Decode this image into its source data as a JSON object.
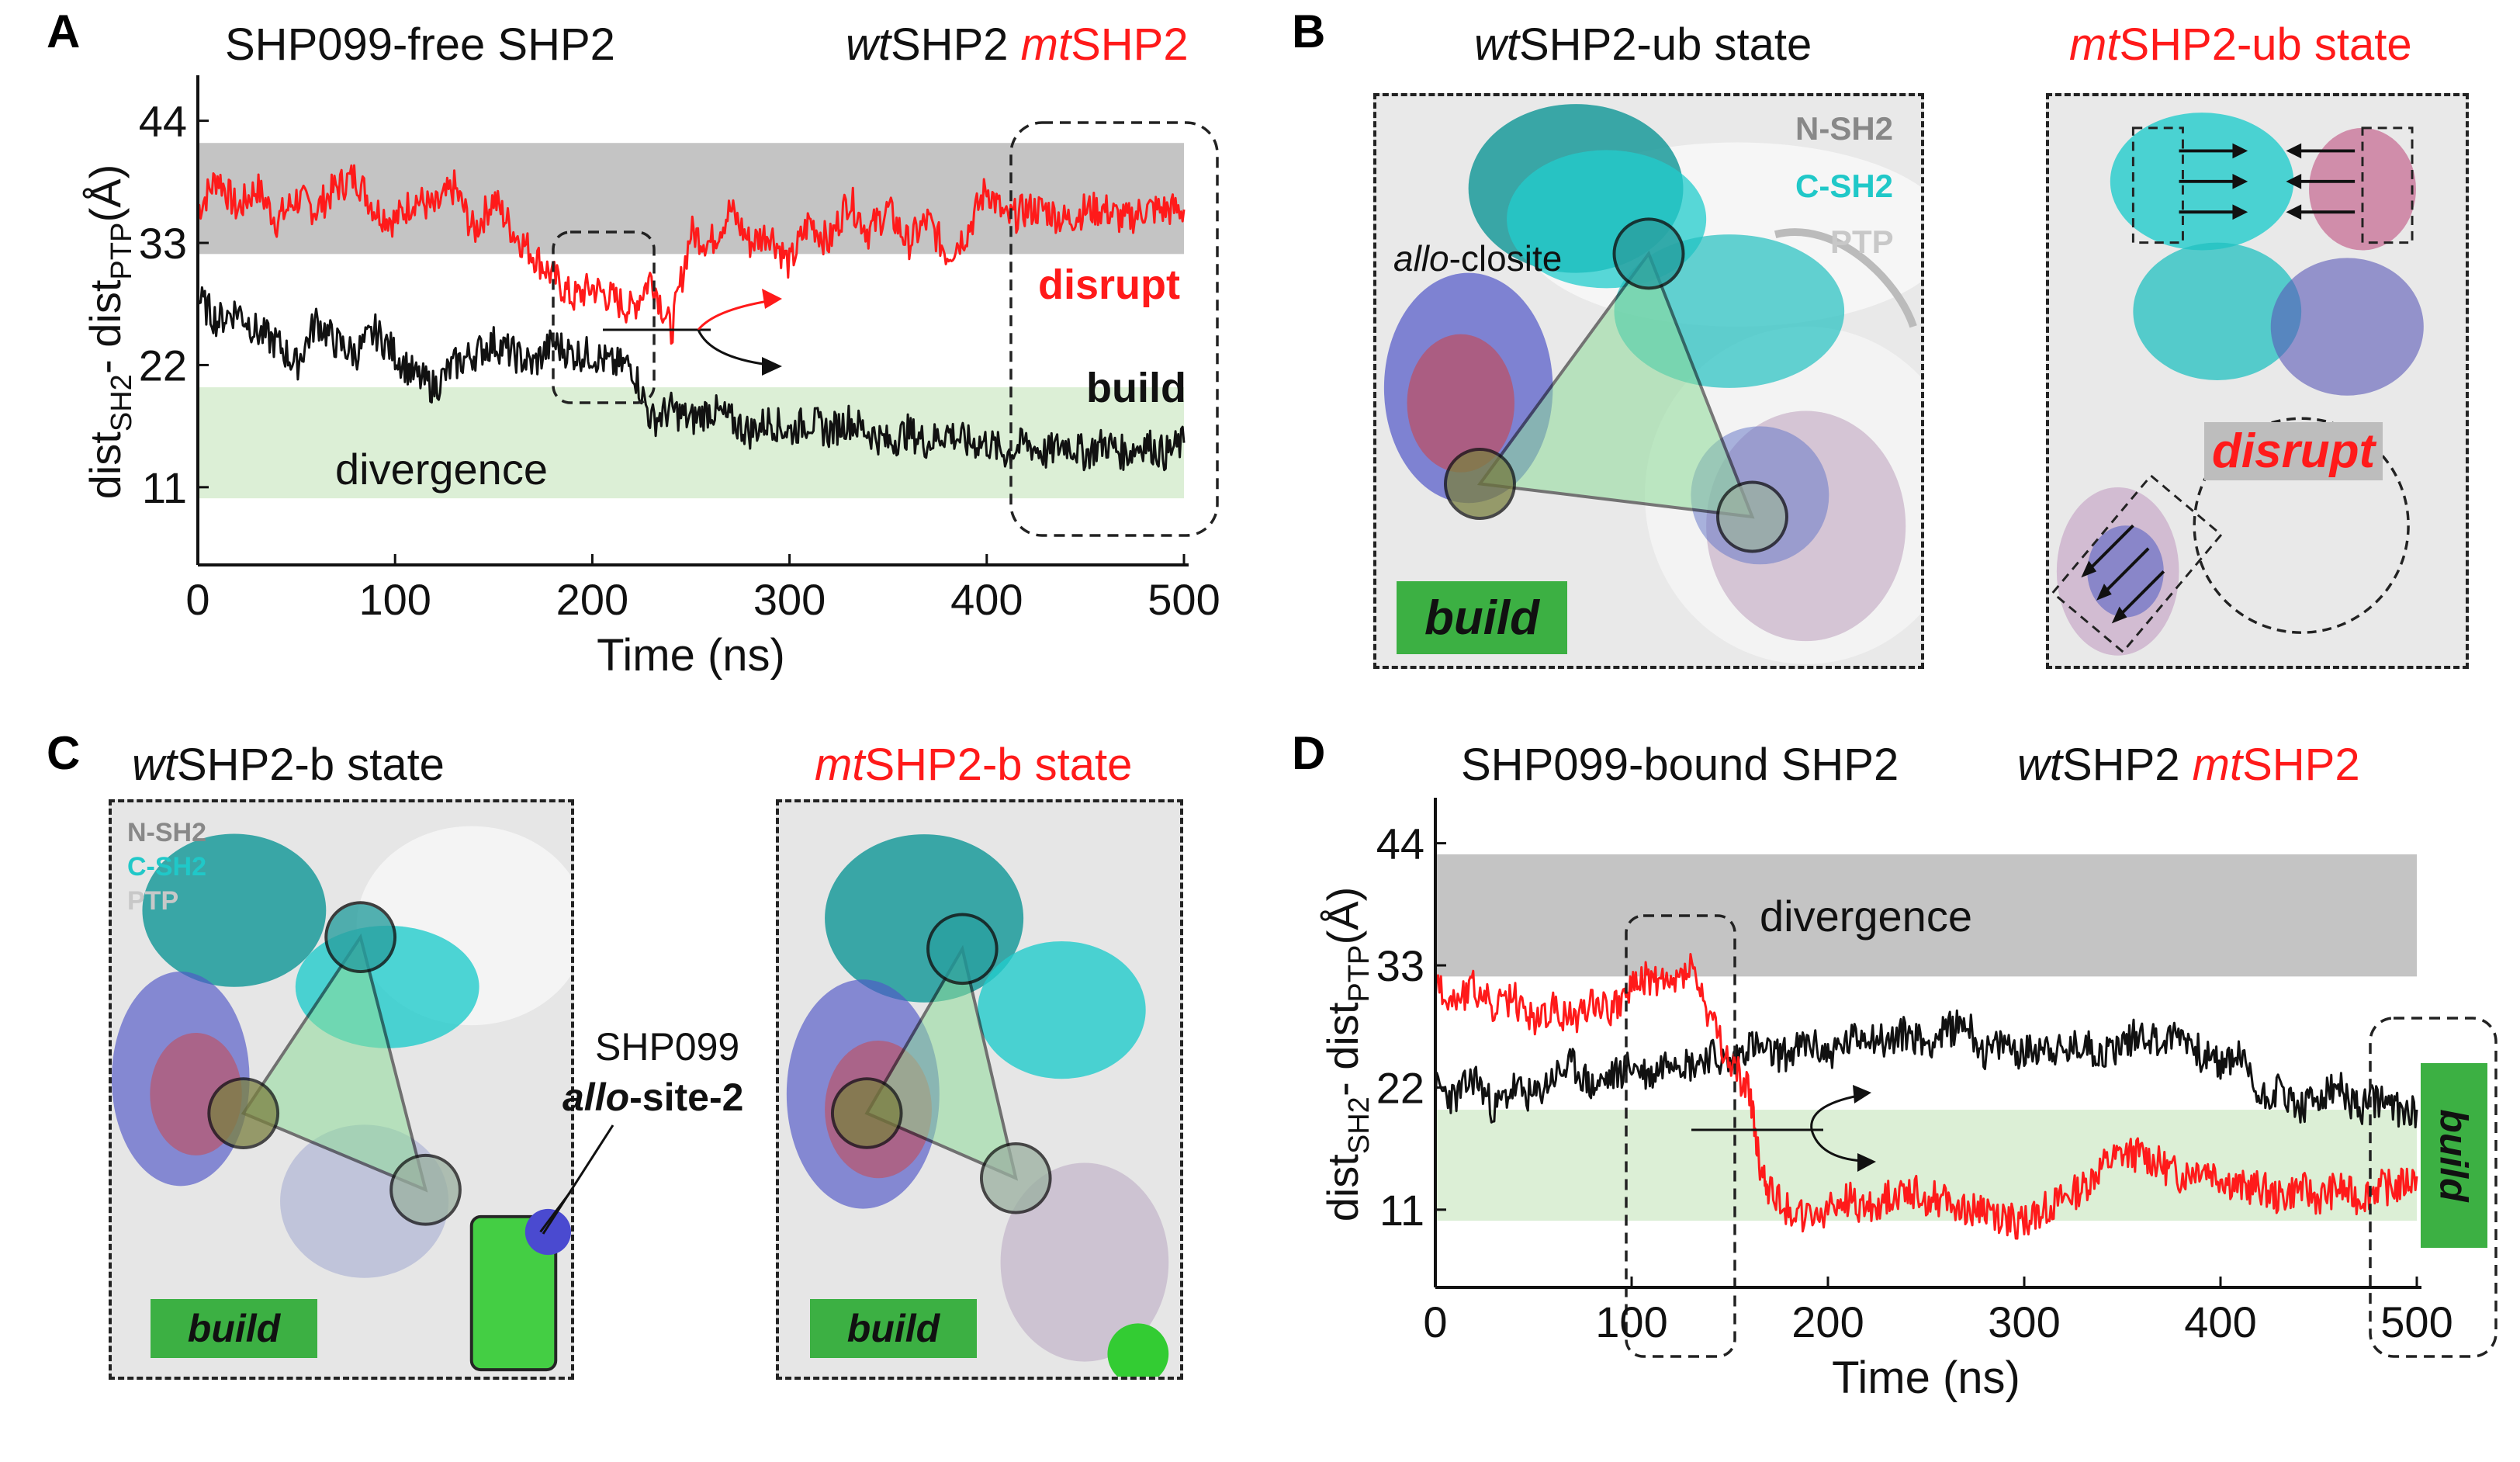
{
  "panels": {
    "A": {
      "label": "A",
      "title": "SHP099-free SHP2"
    },
    "B": {
      "label": "B",
      "wt_title_prefix": "wt",
      "wt_title_suffix": "SHP2-ub state",
      "mt_title_prefix": "mt",
      "mt_title_suffix": "SHP2-ub state",
      "closite_prefix": "allo",
      "closite_suffix": "-closite",
      "build": "build",
      "disrupt": "disrupt"
    },
    "C": {
      "label": "C",
      "wt_title_prefix": "wt",
      "wt_title_suffix": "SHP2-b state",
      "mt_title_prefix": "mt",
      "mt_title_suffix": "SHP2-b state",
      "shp099": "SHP099",
      "site_prefix": "allo",
      "site_suffix": "-site-2",
      "build_left": "build",
      "build_right": "build"
    },
    "D": {
      "label": "D",
      "title": "SHP099-bound SHP2",
      "build": "build"
    }
  },
  "legend": {
    "nsh2": "N-SH2",
    "csh2": "C-SH2",
    "ptp": "PTP"
  },
  "series_labels": {
    "wt_prefix": "wt",
    "wt_suffix": "SHP2",
    "mt_prefix": "mt",
    "mt_suffix": "SHP2"
  },
  "colors": {
    "wt": "#111111",
    "mt": "#ff1a1a",
    "build_band": "#dcefd6",
    "disrupt_band": "#c4c4c4",
    "build_tag": "#3cb043",
    "cyan": "#20c8c8"
  },
  "chart_data": [
    {
      "type": "line",
      "panel": "A",
      "title": "SHP099-free SHP2",
      "xlabel": "Time (ns)",
      "ylabel": "dist_SH2 - dist_PTP (Å)",
      "ylabel_main": "dist",
      "ylabel_sub1": "SH2",
      "ylabel_mid": " - dist",
      "ylabel_sub2": "PTP",
      "ylabel_unit": " (Å)",
      "xlim": [
        0,
        500
      ],
      "ylim": [
        4,
        46
      ],
      "xticks": [
        0,
        100,
        200,
        300,
        400,
        500
      ],
      "yticks": [
        11,
        22,
        33,
        44
      ],
      "bands": [
        {
          "name": "disrupt-band",
          "y0": 32,
          "y1": 42,
          "color": "#c4c4c4"
        },
        {
          "name": "build-band",
          "y0": 10,
          "y1": 20,
          "color": "#dcefd6"
        }
      ],
      "band_text": "divergence",
      "annotations": {
        "disrupt": "disrupt",
        "build": "build"
      },
      "series": [
        {
          "name": "mtSHP2",
          "color": "#ff1a1a",
          "points": [
            [
              0,
              36
            ],
            [
              10,
              39
            ],
            [
              20,
              36
            ],
            [
              30,
              38
            ],
            [
              40,
              35
            ],
            [
              50,
              37
            ],
            [
              60,
              36
            ],
            [
              70,
              38
            ],
            [
              80,
              39
            ],
            [
              90,
              36
            ],
            [
              100,
              35
            ],
            [
              110,
              37
            ],
            [
              120,
              36
            ],
            [
              130,
              38
            ],
            [
              140,
              34
            ],
            [
              150,
              37
            ],
            [
              160,
              34
            ],
            [
              170,
              32
            ],
            [
              180,
              30
            ],
            [
              190,
              28
            ],
            [
              200,
              29
            ],
            [
              210,
              28
            ],
            [
              220,
              27
            ],
            [
              230,
              30
            ],
            [
              240,
              25
            ],
            [
              250,
              34
            ],
            [
              260,
              33
            ],
            [
              270,
              36
            ],
            [
              280,
              33
            ],
            [
              290,
              34
            ],
            [
              300,
              31
            ],
            [
              310,
              35
            ],
            [
              320,
              33
            ],
            [
              330,
              37
            ],
            [
              340,
              34
            ],
            [
              350,
              36
            ],
            [
              360,
              33
            ],
            [
              370,
              35
            ],
            [
              380,
              32
            ],
            [
              390,
              34
            ],
            [
              400,
              38
            ],
            [
              410,
              35
            ],
            [
              420,
              36
            ],
            [
              430,
              36
            ],
            [
              440,
              35
            ],
            [
              450,
              36
            ],
            [
              460,
              36
            ],
            [
              470,
              35
            ],
            [
              480,
              36
            ],
            [
              490,
              36
            ],
            [
              500,
              36
            ]
          ]
        },
        {
          "name": "wtSHP2",
          "color": "#111111",
          "points": [
            [
              0,
              28
            ],
            [
              10,
              26
            ],
            [
              20,
              27
            ],
            [
              30,
              25
            ],
            [
              40,
              24
            ],
            [
              50,
              22
            ],
            [
              60,
              26
            ],
            [
              70,
              24
            ],
            [
              80,
              23
            ],
            [
              90,
              25
            ],
            [
              100,
              23
            ],
            [
              110,
              21
            ],
            [
              120,
              20
            ],
            [
              130,
              22
            ],
            [
              140,
              23
            ],
            [
              150,
              24
            ],
            [
              160,
              23
            ],
            [
              170,
              22
            ],
            [
              180,
              24
            ],
            [
              190,
              23
            ],
            [
              200,
              23
            ],
            [
              210,
              22
            ],
            [
              220,
              22
            ],
            [
              230,
              17
            ],
            [
              240,
              18
            ],
            [
              250,
              17
            ],
            [
              260,
              18
            ],
            [
              270,
              17
            ],
            [
              280,
              16
            ],
            [
              290,
              17
            ],
            [
              300,
              16
            ],
            [
              310,
              17
            ],
            [
              320,
              16
            ],
            [
              330,
              17
            ],
            [
              340,
              16
            ],
            [
              350,
              15
            ],
            [
              360,
              16
            ],
            [
              370,
              15
            ],
            [
              380,
              16
            ],
            [
              390,
              15
            ],
            [
              400,
              15
            ],
            [
              410,
              14
            ],
            [
              420,
              15
            ],
            [
              430,
              14
            ],
            [
              440,
              15
            ],
            [
              450,
              14
            ],
            [
              460,
              15
            ],
            [
              470,
              14
            ],
            [
              480,
              15
            ],
            [
              490,
              14
            ],
            [
              500,
              15
            ]
          ]
        }
      ]
    },
    {
      "type": "line",
      "panel": "D",
      "title": "SHP099-bound SHP2",
      "xlabel": "Time (ns)",
      "ylabel": "dist_SH2 - dist_PTP (Å)",
      "ylabel_main": "dist",
      "ylabel_sub1": "SH2",
      "ylabel_mid": " - dist",
      "ylabel_sub2": "PTP",
      "ylabel_unit": " (Å)",
      "xlim": [
        0,
        500
      ],
      "ylim": [
        4,
        46
      ],
      "xticks": [
        0,
        100,
        200,
        300,
        400,
        500
      ],
      "yticks": [
        11,
        22,
        33,
        44
      ],
      "bands": [
        {
          "name": "disrupt-band",
          "y0": 32,
          "y1": 43,
          "color": "#c4c4c4"
        },
        {
          "name": "build-band",
          "y0": 10,
          "y1": 20,
          "color": "#dcefd6"
        }
      ],
      "band_text": "divergence",
      "annotations": {
        "build": "build"
      },
      "series": [
        {
          "name": "wtSHP2",
          "color": "#111111",
          "points": [
            [
              0,
              22
            ],
            [
              10,
              21
            ],
            [
              20,
              23
            ],
            [
              30,
              20
            ],
            [
              40,
              22
            ],
            [
              50,
              21
            ],
            [
              60,
              23
            ],
            [
              70,
              24
            ],
            [
              80,
              22
            ],
            [
              90,
              23
            ],
            [
              100,
              24
            ],
            [
              110,
              23
            ],
            [
              120,
              25
            ],
            [
              130,
              24
            ],
            [
              140,
              25
            ],
            [
              150,
              24
            ],
            [
              160,
              26
            ],
            [
              170,
              25
            ],
            [
              180,
              25
            ],
            [
              190,
              26
            ],
            [
              200,
              25
            ],
            [
              210,
              26
            ],
            [
              220,
              27
            ],
            [
              230,
              26
            ],
            [
              240,
              27
            ],
            [
              250,
              26
            ],
            [
              260,
              27
            ],
            [
              270,
              28
            ],
            [
              280,
              25
            ],
            [
              290,
              26
            ],
            [
              300,
              25
            ],
            [
              310,
              26
            ],
            [
              320,
              25
            ],
            [
              330,
              26
            ],
            [
              340,
              25
            ],
            [
              350,
              26
            ],
            [
              360,
              27
            ],
            [
              370,
              26
            ],
            [
              380,
              27
            ],
            [
              390,
              25
            ],
            [
              400,
              24
            ],
            [
              410,
              25
            ],
            [
              420,
              21
            ],
            [
              430,
              22
            ],
            [
              440,
              20
            ],
            [
              450,
              21
            ],
            [
              460,
              22
            ],
            [
              470,
              20
            ],
            [
              480,
              21
            ],
            [
              490,
              20
            ],
            [
              500,
              20
            ]
          ]
        },
        {
          "name": "mtSHP2",
          "color": "#ff1a1a",
          "points": [
            [
              0,
              31
            ],
            [
              10,
              30
            ],
            [
              20,
              31
            ],
            [
              30,
              29
            ],
            [
              40,
              30
            ],
            [
              50,
              28
            ],
            [
              60,
              29
            ],
            [
              70,
              28
            ],
            [
              80,
              30
            ],
            [
              90,
              29
            ],
            [
              100,
              31
            ],
            [
              110,
              32
            ],
            [
              120,
              31
            ],
            [
              130,
              33
            ],
            [
              140,
              28
            ],
            [
              150,
              24
            ],
            [
              160,
              22
            ],
            [
              165,
              15
            ],
            [
              170,
              13
            ],
            [
              180,
              11
            ],
            [
              190,
              10
            ],
            [
              200,
              11
            ],
            [
              210,
              12
            ],
            [
              220,
              11
            ],
            [
              230,
              12
            ],
            [
              240,
              13
            ],
            [
              250,
              12
            ],
            [
              260,
              12
            ],
            [
              270,
              11
            ],
            [
              280,
              11
            ],
            [
              290,
              10
            ],
            [
              300,
              10
            ],
            [
              310,
              11
            ],
            [
              320,
              12
            ],
            [
              330,
              13
            ],
            [
              340,
              15
            ],
            [
              350,
              16
            ],
            [
              360,
              16
            ],
            [
              370,
              15
            ],
            [
              380,
              14
            ],
            [
              390,
              15
            ],
            [
              400,
              14
            ],
            [
              410,
              13
            ],
            [
              420,
              13
            ],
            [
              430,
              12
            ],
            [
              440,
              13
            ],
            [
              450,
              12
            ],
            [
              460,
              13
            ],
            [
              470,
              12
            ],
            [
              480,
              13
            ],
            [
              490,
              13
            ],
            [
              500,
              14
            ]
          ]
        }
      ]
    }
  ]
}
